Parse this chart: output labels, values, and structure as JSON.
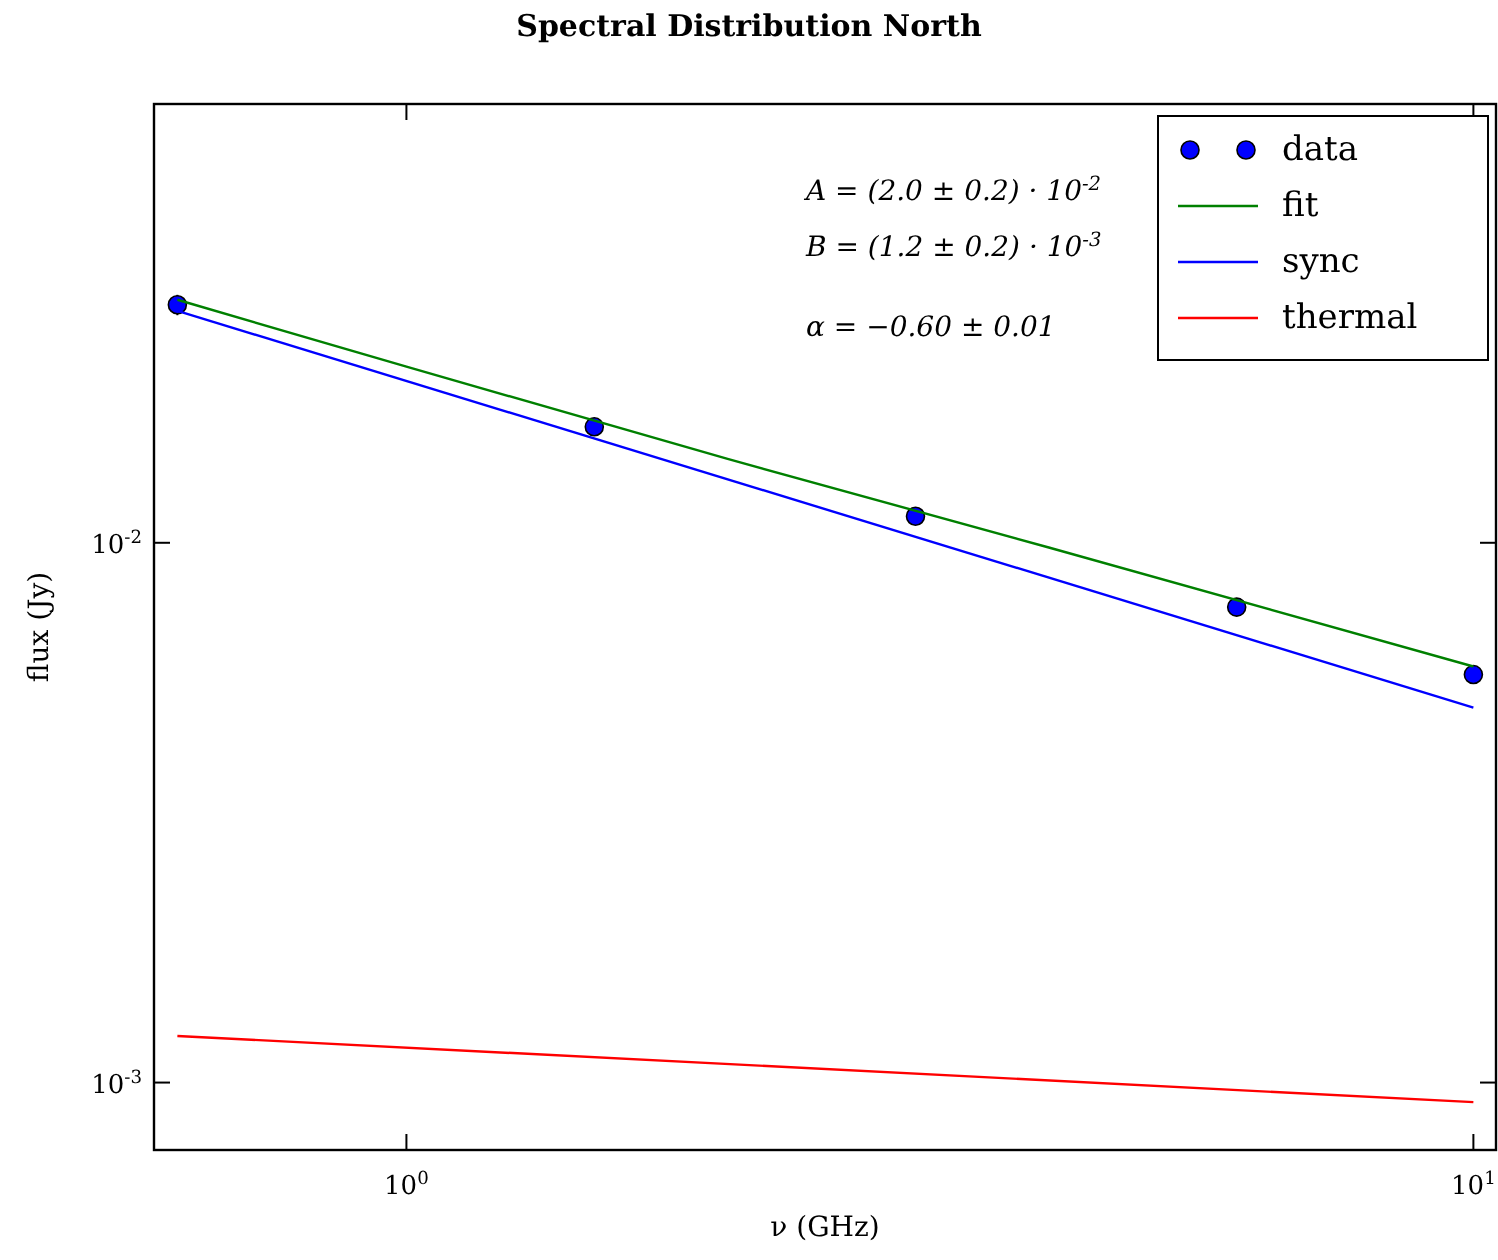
{
  "chart_data": {
    "type": "scatter",
    "title": "Spectral Distribution North",
    "xlabel": "ν (GHz)",
    "ylabel": "flux (Jy)",
    "log": "xy",
    "xlim": [
      0.58,
      10.5
    ],
    "ylim": [
      0.00075,
      0.065
    ],
    "xticks": [
      {
        "value": 1,
        "label": "10$^{0}$"
      },
      {
        "value": 10,
        "label": "10$^{1}$"
      }
    ],
    "yticks": [
      {
        "value": 0.001,
        "label": "10$^{-3}$"
      },
      {
        "value": 0.01,
        "label": "10$^{-2}$"
      }
    ],
    "legend": "top right",
    "grid": false,
    "annotations": [
      "A = (2.0 ± 0.2) · 10$^{-2}$",
      "B = (1.2 ± 0.2) · 10$^{-3}$",
      "α = −0.60 ± 0.01"
    ],
    "series": [
      {
        "name": "data",
        "marker": "circle",
        "color": "#0000ff",
        "x": [
          0.61,
          1.5,
          3.0,
          6.0,
          10
        ],
        "values": [
          0.0276,
          0.0164,
          0.0112,
          0.0076,
          0.0057
        ],
        "errors": [
          0.0012,
          0.0005,
          0.0003,
          0.0002,
          0.00015
        ]
      },
      {
        "name": "fit",
        "type": "line",
        "color": "#008000",
        "x": [
          0.61,
          1,
          2,
          4,
          10
        ],
        "values": [
          0.0282,
          0.0212,
          0.0143,
          0.0098,
          0.0059
        ]
      },
      {
        "name": "sync",
        "type": "line",
        "color": "#0000ff",
        "x": [
          0.61,
          10
        ],
        "values": [
          0.0269,
          0.00495
        ]
      },
      {
        "name": "thermal",
        "type": "line",
        "color": "#ff0000",
        "x": [
          0.61,
          10
        ],
        "values": [
          0.00122,
          0.00092
        ]
      }
    ]
  }
}
